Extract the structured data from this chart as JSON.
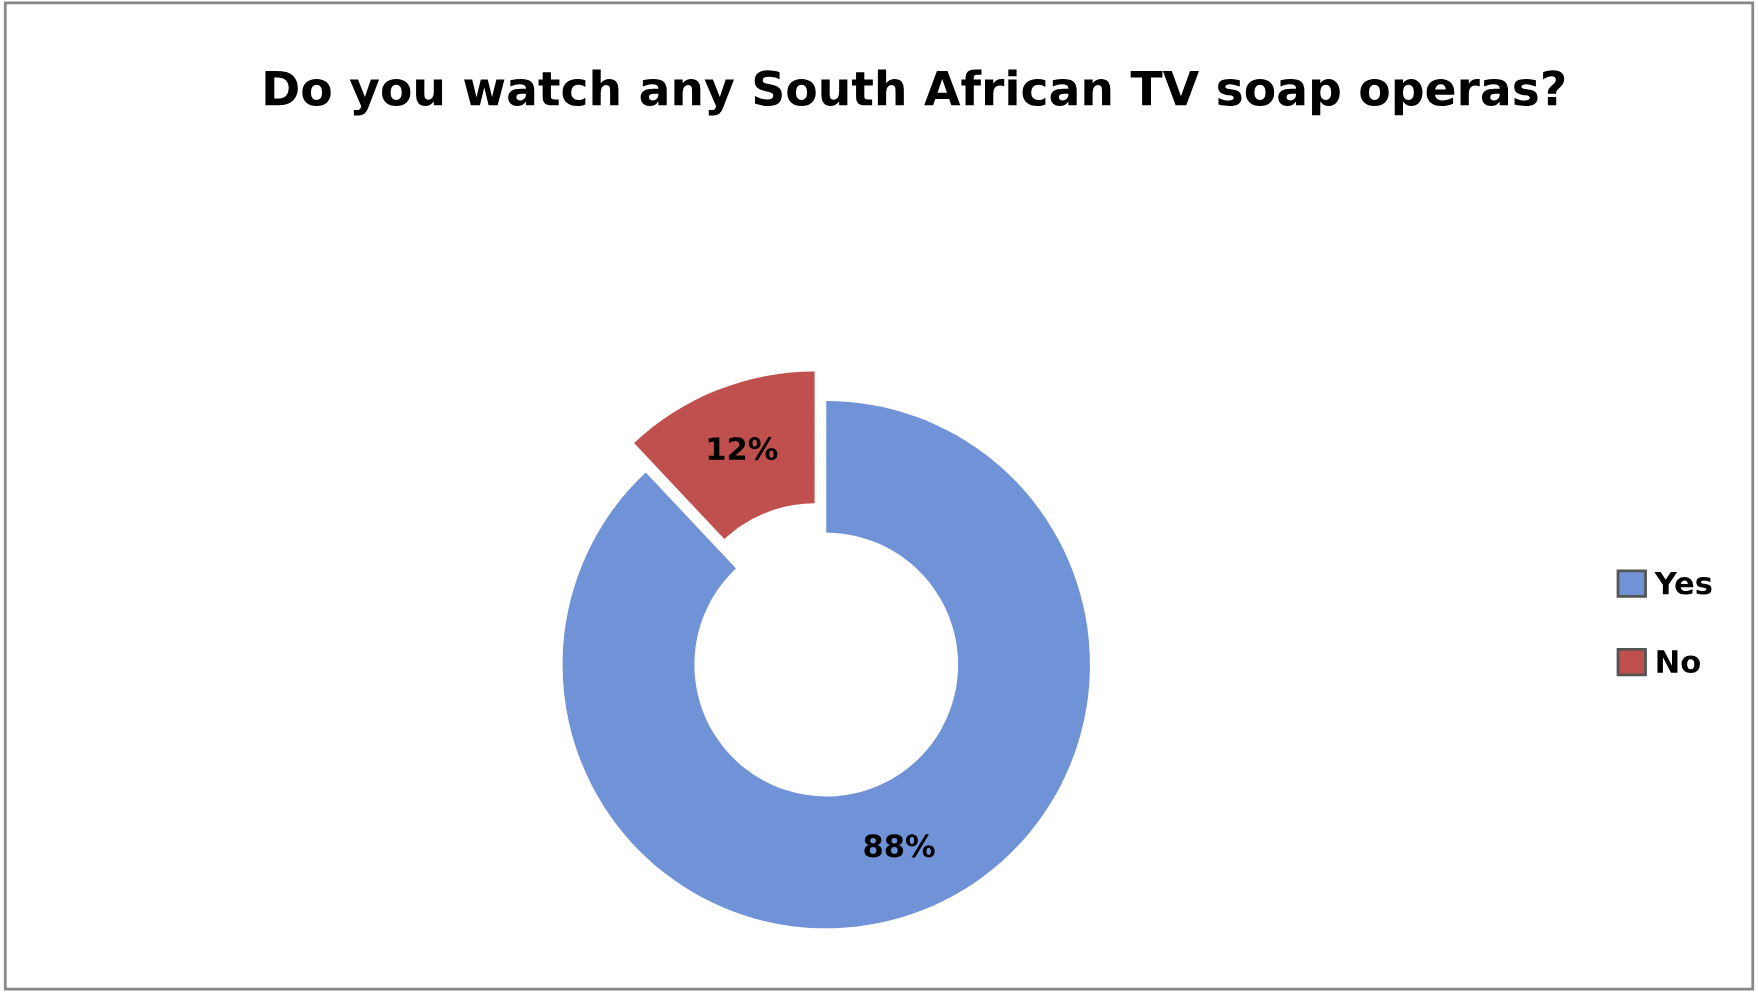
{
  "chart_data": {
    "type": "donut",
    "title": "Do you watch any South African TV soap operas?",
    "categories": [
      "Yes",
      "No"
    ],
    "values": [
      88,
      12
    ],
    "colors": [
      "#6f93d6",
      "#c0504d"
    ],
    "value_labels": [
      "88%",
      "12%"
    ],
    "legend": "right"
  }
}
